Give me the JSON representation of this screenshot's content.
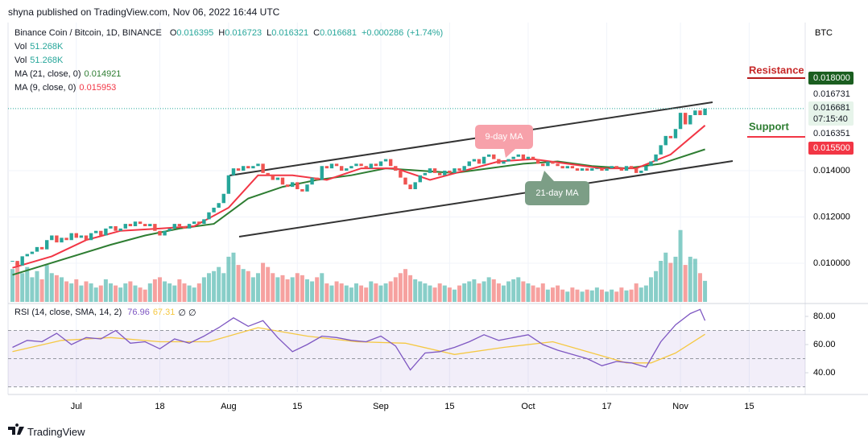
{
  "header": {
    "publisher": "shyna published on TradingView.com, Nov 06, 2022 16:44 UTC",
    "footer": "TradingView"
  },
  "chart_data": {
    "type": "candlestick",
    "title": "Binance Coin / Bitcoin, 1D, BINANCE",
    "ohlc": [
      {
        "key": "O",
        "value": 0.016395
      },
      {
        "key": "H",
        "value": 0.016723
      },
      {
        "key": "L",
        "value": 0.016321
      },
      {
        "key": "C",
        "value": 0.016681
      }
    ],
    "change": {
      "value": 0.000286,
      "label": "+0.000286"
    },
    "change_pct": {
      "value": 1.74,
      "label": "(+1.74%)"
    },
    "currency": "BTC",
    "up_color": "#26a69a",
    "down_color": "#ef5350",
    "xlim": [
      -0.9,
      161.4
    ],
    "xticks": [
      {
        "value": 13,
        "label": "Jul"
      },
      {
        "value": 30,
        "label": "18"
      },
      {
        "value": 44,
        "label": "Aug"
      },
      {
        "value": 58,
        "label": "15"
      },
      {
        "value": 75,
        "label": "Sep"
      },
      {
        "value": 89,
        "label": "15"
      },
      {
        "value": 105,
        "label": "Oct"
      },
      {
        "value": 121,
        "label": "17"
      },
      {
        "value": 136,
        "label": "Nov"
      },
      {
        "value": 150,
        "label": "15"
      }
    ],
    "ylim": [
      0.00833,
      0.0204
    ],
    "yticks": [
      {
        "value": 0.01,
        "label": "0.010000"
      },
      {
        "value": 0.012,
        "label": "0.012000"
      },
      {
        "value": 0.014,
        "label": "0.014000"
      }
    ],
    "close": [
      0.0101,
      0.0099,
      0.0103,
      0.0104,
      0.0105,
      0.0107,
      0.0106,
      0.011,
      0.0112,
      0.0109,
      0.0111,
      0.011,
      0.0113,
      0.0111,
      0.0112,
      0.011,
      0.0113,
      0.0114,
      0.0112,
      0.0115,
      0.0116,
      0.0114,
      0.0115,
      0.0117,
      0.0116,
      0.0118,
      0.0117,
      0.0116,
      0.0117,
      0.0114,
      0.0112,
      0.0114,
      0.0115,
      0.0117,
      0.0116,
      0.0115,
      0.0117,
      0.0118,
      0.0117,
      0.0119,
      0.0122,
      0.0124,
      0.0126,
      0.013,
      0.0138,
      0.0141,
      0.014,
      0.0142,
      0.0141,
      0.0142,
      0.0143,
      0.0139,
      0.0138,
      0.0136,
      0.0137,
      0.0134,
      0.0133,
      0.0135,
      0.0132,
      0.0131,
      0.0134,
      0.0137,
      0.0136,
      0.0142,
      0.0141,
      0.0143,
      0.0142,
      0.014,
      0.0141,
      0.0142,
      0.0143,
      0.0142,
      0.0141,
      0.0143,
      0.0142,
      0.0144,
      0.0145,
      0.0142,
      0.014,
      0.0137,
      0.0134,
      0.0132,
      0.0135,
      0.0138,
      0.0139,
      0.0141,
      0.0139,
      0.0138,
      0.014,
      0.0139,
      0.0141,
      0.014,
      0.0142,
      0.0144,
      0.0145,
      0.0143,
      0.0146,
      0.0147,
      0.0145,
      0.0143,
      0.0144,
      0.0145,
      0.0146,
      0.0147,
      0.0145,
      0.0146,
      0.0145,
      0.0143,
      0.0142,
      0.0144,
      0.0143,
      0.0142,
      0.0141,
      0.0142,
      0.0141,
      0.014,
      0.0141,
      0.014,
      0.0141,
      0.0141,
      0.014,
      0.0141,
      0.0142,
      0.0141,
      0.014,
      0.0142,
      0.0141,
      0.0139,
      0.014,
      0.0142,
      0.0144,
      0.0147,
      0.0151,
      0.0155,
      0.0154,
      0.0158,
      0.0165,
      0.016,
      0.0164,
      0.0166,
      0.0164,
      0.016681
    ],
    "volume": [
      80,
      95,
      70,
      85,
      60,
      75,
      55,
      90,
      70,
      65,
      60,
      50,
      45,
      55,
      40,
      50,
      45,
      35,
      40,
      55,
      45,
      40,
      35,
      45,
      50,
      40,
      35,
      30,
      45,
      55,
      60,
      50,
      45,
      40,
      55,
      45,
      40,
      35,
      45,
      60,
      70,
      75,
      85,
      70,
      110,
      120,
      90,
      80,
      75,
      60,
      70,
      95,
      85,
      70,
      60,
      65,
      55,
      60,
      70,
      65,
      55,
      50,
      60,
      70,
      45,
      40,
      50,
      45,
      40,
      35,
      45,
      40,
      35,
      50,
      45,
      40,
      45,
      50,
      60,
      70,
      80,
      65,
      55,
      50,
      45,
      40,
      35,
      45,
      40,
      35,
      30,
      40,
      45,
      50,
      55,
      45,
      50,
      60,
      55,
      45,
      40,
      50,
      55,
      60,
      50,
      45,
      40,
      35,
      45,
      30,
      35,
      40,
      30,
      25,
      35,
      30,
      25,
      30,
      28,
      35,
      30,
      25,
      30,
      25,
      35,
      28,
      30,
      45,
      35,
      40,
      60,
      75,
      100,
      120,
      95,
      110,
      175,
      90,
      110,
      105,
      70,
      51.268
    ],
    "vol_lim": [
      0,
      300
    ],
    "volume_legend": [
      {
        "name": "Vol",
        "label": "51.268K"
      },
      {
        "name": "Vol",
        "label": "51.268K"
      }
    ],
    "moving_averages": [
      {
        "name": "MA (21, close, 0)",
        "last": 0.014921,
        "color": "#2e7d32",
        "x": [
          0,
          20,
          27,
          34,
          41,
          48,
          55,
          62,
          69,
          76,
          83,
          90,
          97,
          104,
          111,
          118,
          125,
          132,
          141
        ],
        "values": [
          0.0095,
          0.0108,
          0.0112,
          0.0115,
          0.0117,
          0.0128,
          0.0133,
          0.0136,
          0.0138,
          0.0141,
          0.014,
          0.0139,
          0.0141,
          0.0143,
          0.0144,
          0.0142,
          0.0141,
          0.0143,
          0.014921
        ]
      },
      {
        "name": "MA (9, close, 0)",
        "last": 0.015953,
        "color": "#f23645",
        "x": [
          0,
          8,
          15,
          22,
          30,
          37,
          44,
          50,
          57,
          64,
          71,
          78,
          85,
          92,
          99,
          106,
          113,
          120,
          127,
          134,
          141
        ],
        "values": [
          0.0098,
          0.0103,
          0.011,
          0.0114,
          0.0115,
          0.0116,
          0.0124,
          0.0138,
          0.0138,
          0.0136,
          0.0141,
          0.0141,
          0.0136,
          0.014,
          0.0144,
          0.0145,
          0.0143,
          0.0141,
          0.0141,
          0.0147,
          0.015953
        ]
      }
    ],
    "price_labels": [
      {
        "value": 0.018,
        "label": "0.018000",
        "color": "#1b5e20",
        "text_color": "#ffffff"
      },
      {
        "value": 0.016731,
        "label": "0.016731",
        "color": "#ffffff",
        "text_color": "#131722"
      },
      {
        "value": 0.016681,
        "label": "0.016681",
        "sub": "07:15:40",
        "color": "#e6f4ea",
        "text_color": "#131722"
      },
      {
        "value": 0.016351,
        "label": "0.016351",
        "color": "#ffffff",
        "text_color": "#131722"
      },
      {
        "value": 0.0155,
        "label": "0.015500",
        "color": "#f23645",
        "text_color": "#ffffff"
      }
    ],
    "annotations": {
      "resistance": "Resistance",
      "support": "Support",
      "ma9": "9-day MA",
      "ma21": "21-day MA"
    },
    "rsi": {
      "title": "RSI (14, close, SMA, 14, 2)",
      "value": 76.96,
      "sma_value": 67.31,
      "symbols": "∅ ∅",
      "color": "#7e57c2",
      "sma_color": "#f5c842",
      "ylim": [
        26.29,
        87.43
      ],
      "yticks": [
        {
          "value": 80,
          "label": "80.00"
        },
        {
          "value": 60,
          "label": "60.00"
        },
        {
          "value": 40,
          "label": "40.00"
        }
      ],
      "bands": [
        30,
        50,
        70
      ],
      "x": [
        0,
        3,
        6,
        9,
        12,
        15,
        18,
        21,
        24,
        27,
        30,
        33,
        36,
        39,
        42,
        45,
        48,
        51,
        54,
        57,
        60,
        63,
        66,
        69,
        72,
        75,
        78,
        81,
        84,
        87,
        90,
        93,
        96,
        99,
        102,
        105,
        108,
        111,
        114,
        117,
        120,
        123,
        126,
        129,
        132,
        135,
        138,
        140,
        141
      ],
      "values": [
        58,
        63,
        62,
        68,
        60,
        65,
        64,
        70,
        61,
        62,
        57,
        64,
        61,
        66,
        72,
        79,
        73,
        77,
        65,
        55,
        60,
        66,
        65,
        63,
        62,
        66,
        59,
        42,
        54,
        55,
        58,
        62,
        67,
        63,
        65,
        67,
        60,
        56,
        53,
        50,
        45,
        48,
        47,
        44,
        62,
        74,
        82,
        85,
        76.96
      ],
      "sma_x": [
        0,
        10,
        20,
        30,
        40,
        50,
        60,
        70,
        80,
        90,
        100,
        110,
        120,
        125,
        130,
        135,
        141
      ],
      "sma_values": [
        55,
        63,
        65,
        62,
        62,
        72,
        66,
        62,
        61,
        53,
        58,
        62,
        52,
        47,
        47,
        54,
        67.31
      ]
    }
  }
}
